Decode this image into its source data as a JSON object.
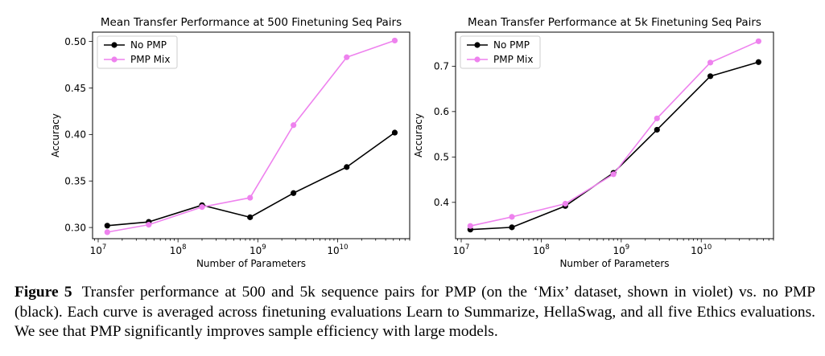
{
  "chart_data": [
    {
      "type": "line",
      "title": "Mean Transfer Performance at 500 Finetuning Seq Pairs",
      "xlabel": "Number of Parameters",
      "ylabel": "Accuracy",
      "xscale": "log",
      "xlim": [
        8500000,
        80000000000
      ],
      "ylim": [
        0.288,
        0.51
      ],
      "x_ticks": [
        10000000,
        100000000,
        1000000000,
        10000000000
      ],
      "x_tick_labels": [
        "10",
        "10",
        "10",
        "10"
      ],
      "x_tick_exponents": [
        "7",
        "8",
        "9",
        "10"
      ],
      "y_ticks": [
        0.3,
        0.35,
        0.4,
        0.45,
        0.5
      ],
      "y_tick_labels": [
        "0.30",
        "0.35",
        "0.40",
        "0.45",
        "0.50"
      ],
      "grid": false,
      "legend_position": "top-left",
      "x": [
        13000000,
        43000000,
        200000000,
        800000000,
        2800000000,
        13000000000,
        52000000000
      ],
      "series": [
        {
          "name": "No PMP",
          "color": "#000000",
          "values": [
            0.302,
            0.306,
            0.324,
            0.311,
            0.337,
            0.365,
            0.402
          ]
        },
        {
          "name": "PMP Mix",
          "color": "#ee82ee",
          "values": [
            0.295,
            0.303,
            0.322,
            0.332,
            0.41,
            0.483,
            0.501
          ]
        }
      ]
    },
    {
      "type": "line",
      "title": "Mean Transfer Performance at 5k Finetuning Seq Pairs",
      "xlabel": "Number of Parameters",
      "ylabel": "Accuracy",
      "xscale": "log",
      "xlim": [
        8500000,
        80000000000
      ],
      "ylim": [
        0.32,
        0.775
      ],
      "x_ticks": [
        10000000,
        100000000,
        1000000000,
        10000000000
      ],
      "x_tick_labels": [
        "10",
        "10",
        "10",
        "10"
      ],
      "x_tick_exponents": [
        "7",
        "8",
        "9",
        "10"
      ],
      "y_ticks": [
        0.4,
        0.5,
        0.6,
        0.7
      ],
      "y_tick_labels": [
        "0.4",
        "0.5",
        "0.6",
        "0.7"
      ],
      "grid": false,
      "legend_position": "top-left",
      "x": [
        13000000,
        43000000,
        200000000,
        800000000,
        2800000000,
        13000000000,
        52000000000
      ],
      "series": [
        {
          "name": "No PMP",
          "color": "#000000",
          "values": [
            0.34,
            0.345,
            0.392,
            0.465,
            0.56,
            0.678,
            0.709
          ]
        },
        {
          "name": "PMP Mix",
          "color": "#ee82ee",
          "values": [
            0.348,
            0.368,
            0.397,
            0.462,
            0.585,
            0.708,
            0.755
          ]
        }
      ]
    }
  ],
  "caption": {
    "label": "Figure 5",
    "text": "Transfer performance at 500 and 5k sequence pairs for PMP (on the ‘Mix’ dataset, shown in violet) vs. no PMP (black). Each curve is averaged across finetuning evaluations Learn to Summarize, HellaSwag, and all five Ethics evaluations. We see that PMP significantly improves sample efficiency with large models."
  }
}
